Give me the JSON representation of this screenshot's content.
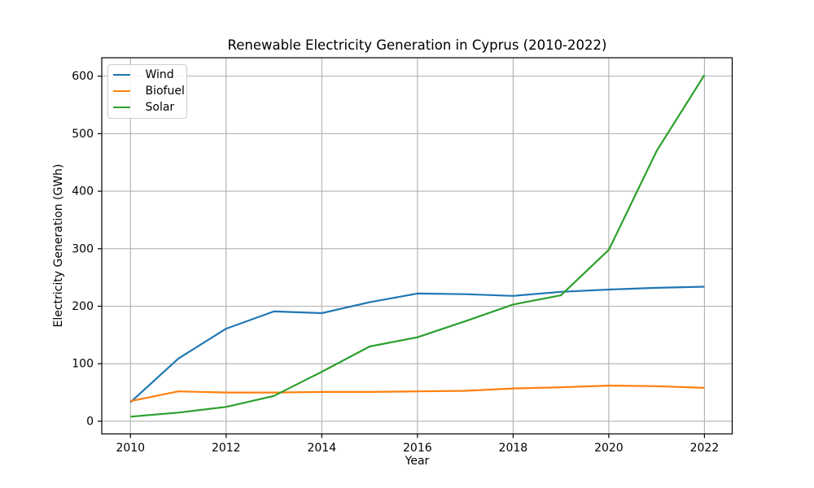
{
  "chart_data": {
    "type": "line",
    "title": "Renewable Electricity Generation in Cyprus (2010-2022)",
    "xlabel": "Year",
    "ylabel": "Electricity Generation (GWh)",
    "x": [
      2010,
      2011,
      2012,
      2013,
      2014,
      2015,
      2016,
      2017,
      2018,
      2019,
      2020,
      2021,
      2022
    ],
    "series": [
      {
        "name": "Wind",
        "color": "#1f77b4",
        "values": [
          33,
          109,
          161,
          191,
          188,
          207,
          222,
          221,
          218,
          225,
          229,
          232,
          234
        ]
      },
      {
        "name": "Biofuel",
        "color": "#ff7f0e",
        "values": [
          35,
          52,
          50,
          50,
          51,
          51,
          52,
          53,
          57,
          59,
          62,
          61,
          58
        ]
      },
      {
        "name": "Solar",
        "color": "#2ca02c",
        "values": [
          8,
          15,
          25,
          44,
          86,
          130,
          146,
          174,
          203,
          219,
          298,
          470,
          602
        ]
      }
    ],
    "xticks": [
      2010,
      2012,
      2014,
      2016,
      2018,
      2020,
      2022
    ],
    "yticks": [
      0,
      100,
      200,
      300,
      400,
      500,
      600
    ],
    "xlim": [
      2009.4,
      2022.58
    ],
    "ylim": [
      -22,
      632
    ],
    "grid": true,
    "legend": {
      "position": "upper left",
      "entries": [
        "Wind",
        "Biofuel",
        "Solar"
      ]
    },
    "colors": {
      "grid": "#b0b0b0",
      "spine": "#000000",
      "background": "#ffffff",
      "text": "#000000"
    }
  }
}
